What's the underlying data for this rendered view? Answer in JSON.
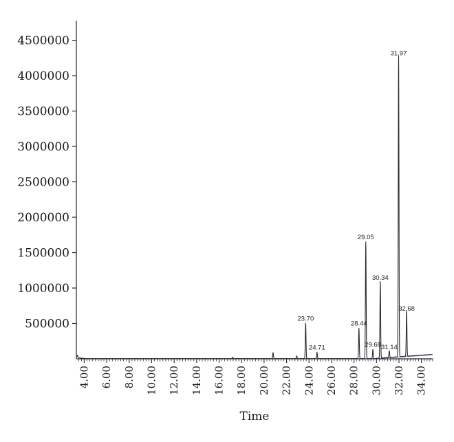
{
  "chart_data": {
    "type": "line",
    "title": "",
    "xlabel": "Time",
    "ylabel": "",
    "xlim": [
      3.3,
      35.0
    ],
    "ylim": [
      0,
      4700000
    ],
    "grid": false,
    "yticks": [
      500000,
      1000000,
      1500000,
      2000000,
      2500000,
      3000000,
      3500000,
      4000000,
      4500000
    ],
    "ytick_labels": [
      "500000",
      "1000000",
      "1500000",
      "2000000",
      "2500000",
      "3000000",
      "3500000",
      "4000000",
      "4500000"
    ],
    "xticks": [
      4,
      6,
      8,
      10,
      12,
      14,
      16,
      18,
      20,
      22,
      24,
      26,
      28,
      30,
      32,
      34
    ],
    "xtick_labels": [
      "4.00",
      "6.00",
      "8.00",
      "10.00",
      "12.00",
      "14.00",
      "16.00",
      "18.00",
      "20.00",
      "22.00",
      "24.00",
      "26.00",
      "28.00",
      "30.00",
      "32.00",
      "34.00"
    ],
    "series": [
      {
        "color": "#2a2a2a",
        "peaks": [
          {
            "x": 3.4,
            "y": 30000,
            "label": ""
          },
          {
            "x": 17.2,
            "y": 20000,
            "label": ""
          },
          {
            "x": 20.8,
            "y": 85000,
            "label": ""
          },
          {
            "x": 22.9,
            "y": 40000,
            "label": ""
          },
          {
            "x": 23.7,
            "y": 500000,
            "label": "23.70"
          },
          {
            "x": 24.71,
            "y": 90000,
            "label": "24.71"
          },
          {
            "x": 28.44,
            "y": 430000,
            "label": "28.44"
          },
          {
            "x": 29.05,
            "y": 1650000,
            "label": "29.05"
          },
          {
            "x": 29.68,
            "y": 130000,
            "label": "29.68"
          },
          {
            "x": 30.34,
            "y": 1080000,
            "label": "30.34"
          },
          {
            "x": 31.14,
            "y": 95000,
            "label": "31.14"
          },
          {
            "x": 31.97,
            "y": 4250000,
            "label": "31.97"
          },
          {
            "x": 32.68,
            "y": 640000,
            "label": "32.68"
          }
        ]
      }
    ]
  }
}
